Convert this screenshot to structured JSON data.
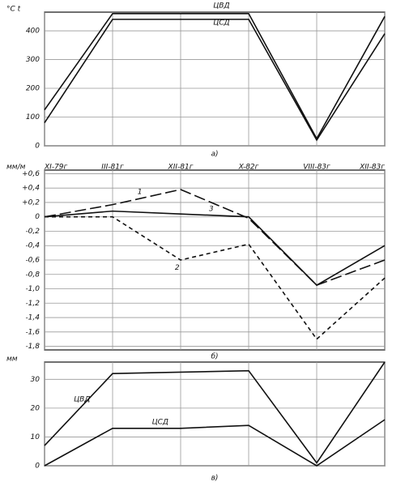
{
  "chart_data": [
    {
      "type": "line",
      "panel_label": "а)",
      "y_label": "°C t",
      "categories": [
        null,
        null,
        null,
        null,
        null,
        null
      ],
      "series": [
        {
          "name": "ЦВД",
          "color": "#111111",
          "style": "solid",
          "values": [
            125,
            460,
            460,
            460,
            25,
            450
          ]
        },
        {
          "name": "ЦСД",
          "color": "#111111",
          "style": "solid",
          "values": [
            80,
            440,
            440,
            440,
            20,
            390
          ]
        }
      ],
      "ylim": [
        0,
        465
      ],
      "yticks": [
        0,
        100,
        200,
        300,
        400
      ],
      "grid": true
    },
    {
      "type": "line",
      "panel_label": "б)",
      "y_label": "мм/м",
      "categories": [
        "XI-79г",
        "III-81г",
        "XII-81г",
        "X-82г",
        "VIII-83г",
        "XII-83г"
      ],
      "series": [
        {
          "name": "1",
          "color": "#111111",
          "style": "long-dash",
          "values": [
            0,
            0.17,
            0.38,
            -0.02,
            -0.95,
            -0.6
          ]
        },
        {
          "name": "2",
          "color": "#111111",
          "style": "short-dash",
          "values": [
            0,
            0,
            -0.6,
            -0.38,
            -1.7,
            -0.85
          ]
        },
        {
          "name": "3",
          "color": "#111111",
          "style": "solid",
          "values": [
            0,
            0.08,
            0.04,
            0,
            -0.95,
            -0.4
          ]
        }
      ],
      "ylim": [
        -1.85,
        0.65
      ],
      "yticks": [
        {
          "value": 0.6,
          "label": "+0,6"
        },
        {
          "value": 0.4,
          "label": "+0,4"
        },
        {
          "value": 0.2,
          "label": "+0,2"
        },
        0,
        {
          "value": -0.2,
          "label": "-0,2"
        },
        {
          "value": -0.4,
          "label": "-0,4"
        },
        {
          "value": -0.6,
          "label": "-0,6"
        },
        {
          "value": -0.8,
          "label": "-0,8"
        },
        {
          "value": -1,
          "label": "-1,0"
        },
        {
          "value": -1.2,
          "label": "-1,2"
        },
        {
          "value": -1.4,
          "label": "-1,4"
        },
        {
          "value": -1.6,
          "label": "-1,6"
        },
        {
          "value": -1.8,
          "label": "-1,8"
        }
      ],
      "grid": true
    },
    {
      "type": "line",
      "panel_label": "в)",
      "y_label": "мм",
      "categories": [
        null,
        null,
        null,
        null,
        null,
        null
      ],
      "series": [
        {
          "name": "ЦВД",
          "color": "#111111",
          "style": "solid",
          "values": [
            7,
            32,
            32.5,
            33,
            1,
            36
          ]
        },
        {
          "name": "ЦСД",
          "color": "#111111",
          "style": "solid",
          "values": [
            0,
            13,
            13,
            14,
            0,
            16
          ]
        }
      ],
      "ylim": [
        0,
        36
      ],
      "yticks": [
        0,
        10,
        20,
        30
      ],
      "grid": true
    }
  ]
}
